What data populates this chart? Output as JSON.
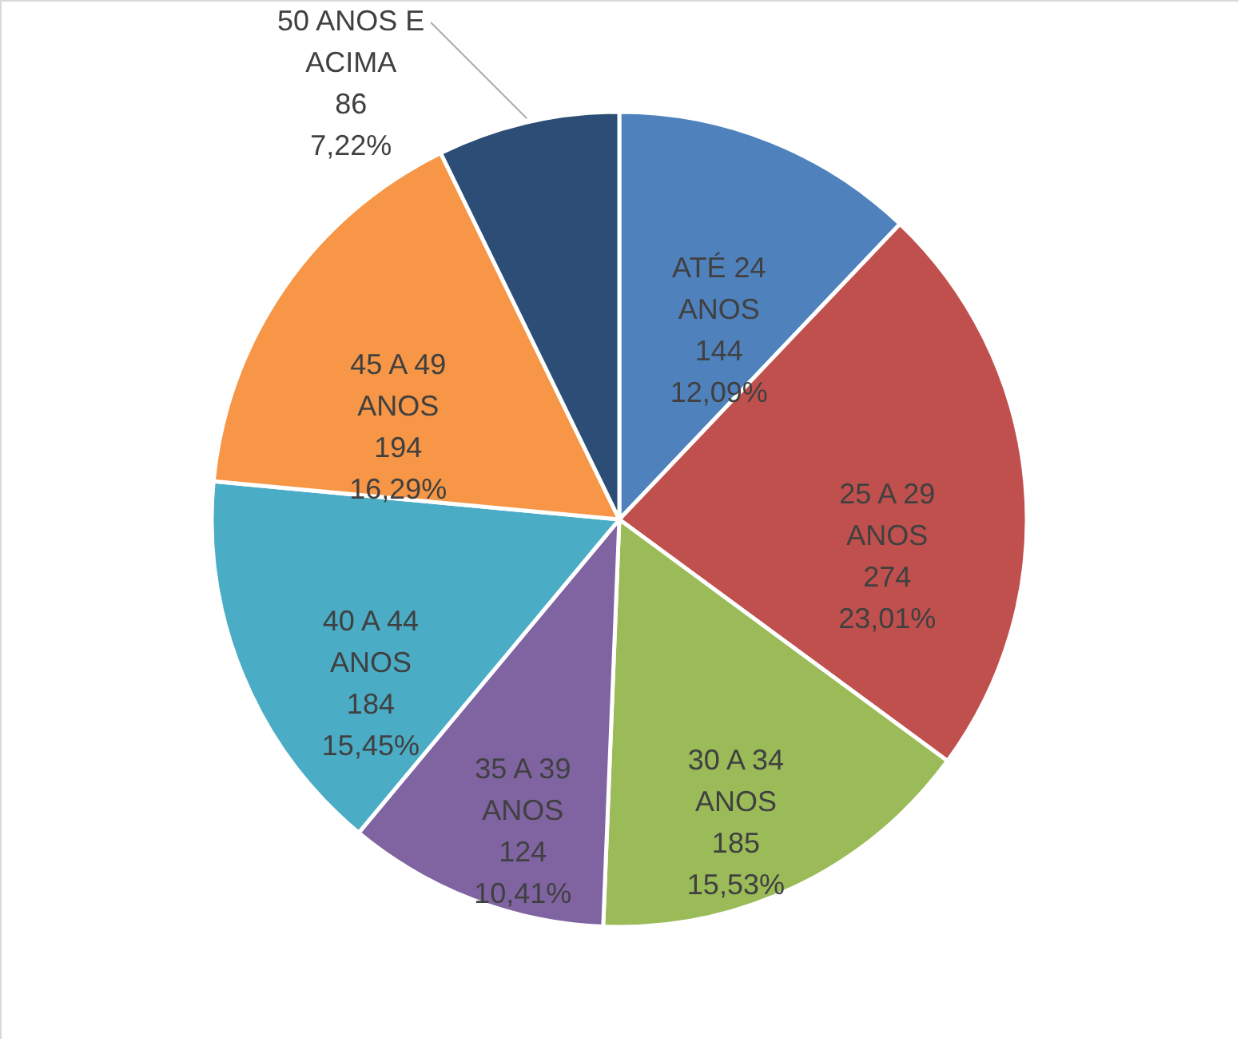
{
  "chart_data": {
    "type": "pie",
    "categories": [
      "ATÉ 24 ANOS",
      "25 A 29 ANOS",
      "30 A 34 ANOS",
      "35 A 39 ANOS",
      "40 A 44 ANOS",
      "45 A 49 ANOS",
      "50 ANOS E ACIMA"
    ],
    "values": [
      12.09,
      23.01,
      15.53,
      10.41,
      15.45,
      16.29,
      7.22
    ],
    "value_labels": [
      "144\n12,09%",
      "274\n23,01%",
      "185\n15,53%",
      "124\n10,41%",
      "184\n15,45%",
      "194\n16,29%",
      "86\n7,22%"
    ],
    "colors": [
      "#4f81bd",
      "#c0504d",
      "#9bbb59",
      "#8064a2",
      "#4bacc6",
      "#f79646",
      "#2c4d75"
    ]
  }
}
